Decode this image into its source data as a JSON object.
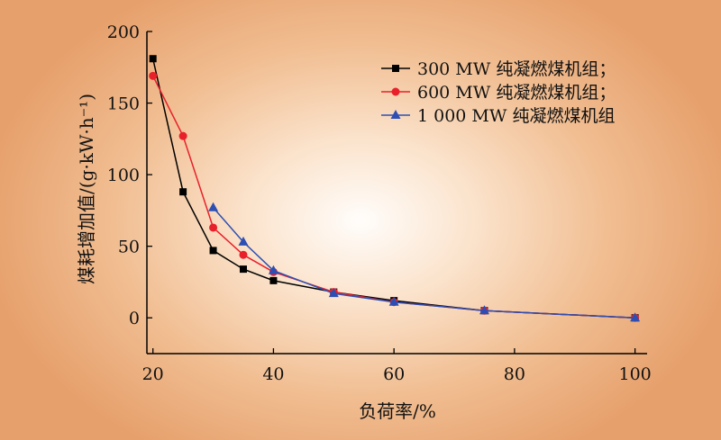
{
  "chart_data": {
    "type": "line",
    "title": "",
    "xlabel": "负荷率/%",
    "ylabel": "煤耗增加值/(g·kW·h⁻¹)",
    "xlim": [
      19,
      102
    ],
    "ylim": [
      -25,
      200
    ],
    "xticks": [
      20,
      40,
      60,
      80,
      100
    ],
    "yticks": [
      0,
      50,
      100,
      150,
      200
    ],
    "grid": false,
    "legend_position": "top-right",
    "series": [
      {
        "name": "300 MW 纯凝燃煤机组；",
        "color": "#000000",
        "marker": "square",
        "points": [
          [
            20,
            181
          ],
          [
            25,
            88
          ],
          [
            30,
            47
          ],
          [
            35,
            34
          ],
          [
            40,
            26
          ],
          [
            50,
            18
          ],
          [
            60,
            12
          ],
          [
            75,
            5
          ],
          [
            100,
            0
          ]
        ]
      },
      {
        "name": "600 MW 纯凝燃煤机组；",
        "color": "#e8202a",
        "marker": "circle",
        "points": [
          [
            20,
            169
          ],
          [
            25,
            127
          ],
          [
            30,
            63
          ],
          [
            35,
            44
          ],
          [
            40,
            32
          ],
          [
            50,
            18
          ],
          [
            60,
            11
          ],
          [
            75,
            5
          ],
          [
            100,
            0
          ]
        ]
      },
      {
        "name": "1 000 MW 纯凝燃煤机组",
        "color": "#2d4fb3",
        "marker": "triangle",
        "points": [
          [
            30,
            77
          ],
          [
            35,
            53
          ],
          [
            40,
            33
          ],
          [
            50,
            17
          ],
          [
            60,
            11
          ],
          [
            75,
            5
          ],
          [
            100,
            0
          ]
        ]
      }
    ]
  }
}
